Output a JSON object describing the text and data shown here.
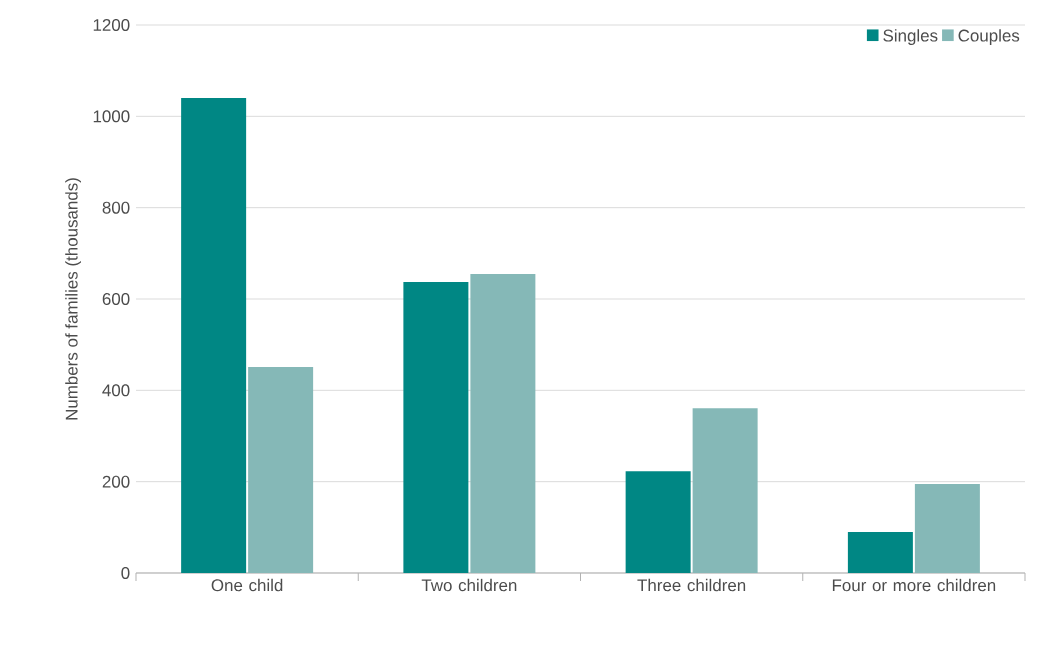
{
  "chart_data": {
    "type": "bar",
    "ylabel": "Numbers of families (thousands)",
    "categories": [
      "One child",
      "Two children",
      "Three children",
      "Four or more children"
    ],
    "series": [
      {
        "name": "Singles",
        "color": "#008784",
        "values": [
          1040,
          637,
          223,
          90
        ]
      },
      {
        "name": "Couples",
        "color": "#85b8b7",
        "values": [
          451,
          655,
          361,
          195
        ]
      }
    ],
    "ylim": [
      0,
      1200
    ],
    "yticks": [
      0,
      200,
      400,
      600,
      800,
      1000,
      1200
    ],
    "grid": "y",
    "legend": "top right"
  }
}
